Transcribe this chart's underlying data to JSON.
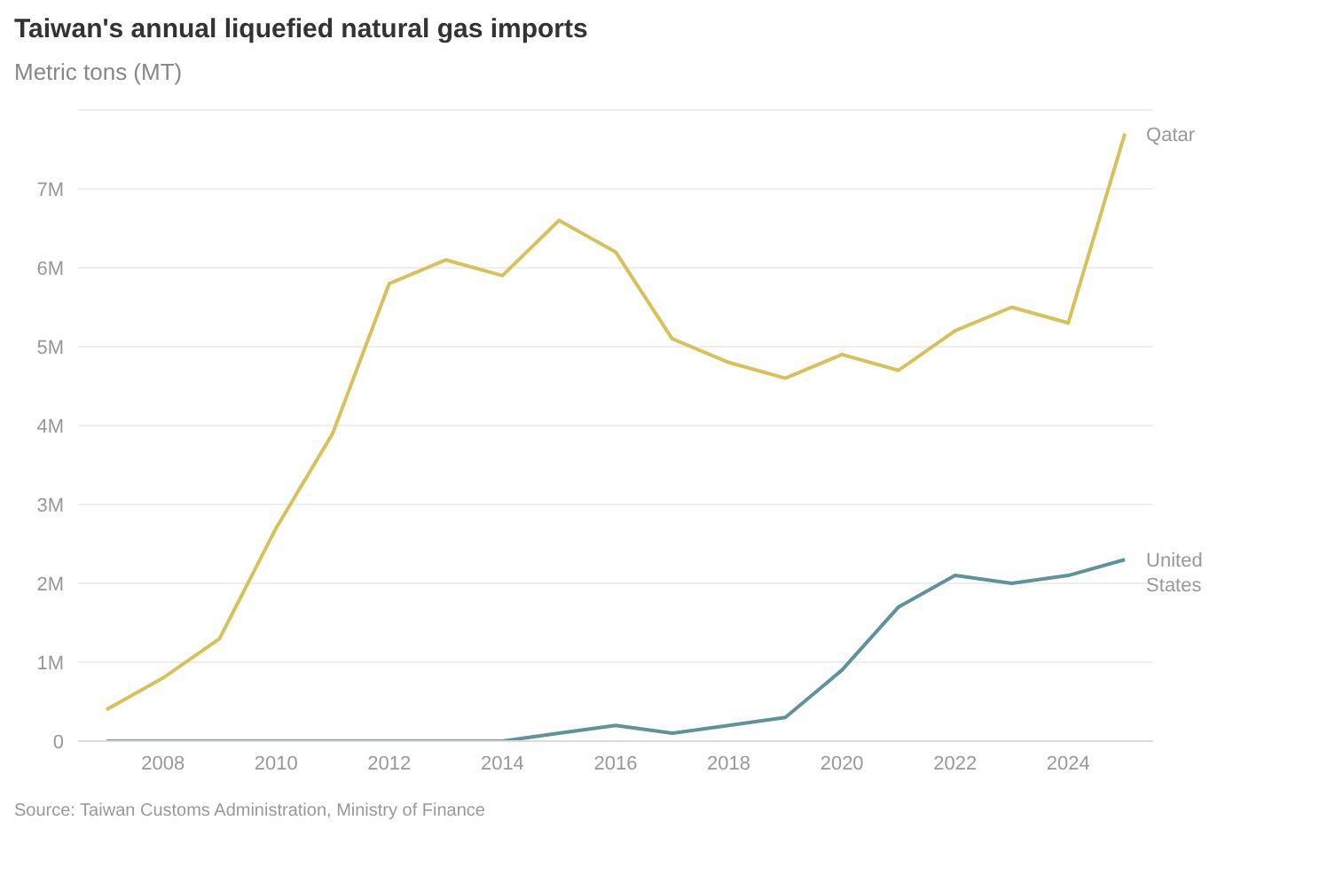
{
  "chart_data": {
    "type": "line",
    "title": "Taiwan's annual liquefied natural gas imports",
    "subtitle": "Metric tons (MT)",
    "x": [
      2007,
      2008,
      2009,
      2010,
      2011,
      2012,
      2013,
      2014,
      2015,
      2016,
      2017,
      2018,
      2019,
      2020,
      2021,
      2022,
      2023,
      2024,
      2025
    ],
    "series": [
      {
        "name": "Qatar",
        "color": "#d6c25a",
        "values": [
          0.4,
          0.8,
          1.3,
          2.7,
          3.9,
          5.8,
          6.1,
          5.9,
          6.6,
          6.2,
          5.1,
          4.8,
          4.6,
          4.9,
          4.7,
          5.2,
          5.5,
          5.3,
          7.7
        ]
      },
      {
        "name": "United States",
        "color": "#5e9499",
        "values": [
          0,
          0,
          0,
          0,
          0,
          0,
          0,
          0,
          0.1,
          0.2,
          0.1,
          0.2,
          0.3,
          0.9,
          1.7,
          2.1,
          2.0,
          2.1,
          2.3
        ]
      }
    ],
    "xlim": [
      2006.5,
      2025.5
    ],
    "xticks": [
      2008,
      2010,
      2012,
      2014,
      2016,
      2018,
      2020,
      2022,
      2024
    ],
    "ylim": [
      0,
      8
    ],
    "yticks": [
      {
        "value": 0,
        "label": "0"
      },
      {
        "value": 1,
        "label": "1M"
      },
      {
        "value": 2,
        "label": "2M"
      },
      {
        "value": 3,
        "label": "3M"
      },
      {
        "value": 4,
        "label": "4M"
      },
      {
        "value": 5,
        "label": "5M"
      },
      {
        "value": 6,
        "label": "6M"
      },
      {
        "value": 7,
        "label": "7M"
      }
    ],
    "grid": "y",
    "marker": "none",
    "line_style": "solid",
    "annotations": [
      "Source: Taiwan Customs Administration, Ministry of Finance"
    ]
  }
}
